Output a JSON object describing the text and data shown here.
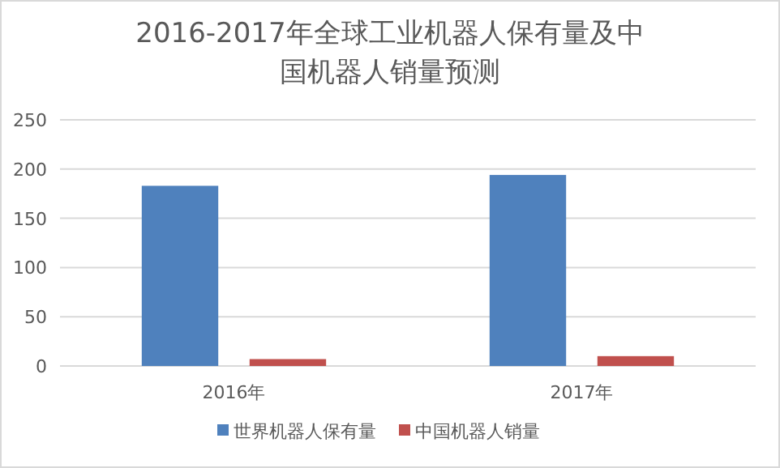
{
  "chart_data": {
    "type": "bar",
    "title": "2016-2017年全球工业机器人保有量及中国机器人销量预测",
    "categories": [
      "2016年",
      "2017年"
    ],
    "series": [
      {
        "name": "世界机器人保有量",
        "color": "#4f81bd",
        "values": [
          183,
          194
        ]
      },
      {
        "name": "中国机器人销量",
        "color": "#c0504d",
        "values": [
          7,
          10
        ]
      }
    ],
    "ylim": [
      0,
      250
    ],
    "yticks": [
      0,
      50,
      100,
      150,
      200,
      250
    ],
    "grid": "y",
    "legend": "bottom"
  }
}
